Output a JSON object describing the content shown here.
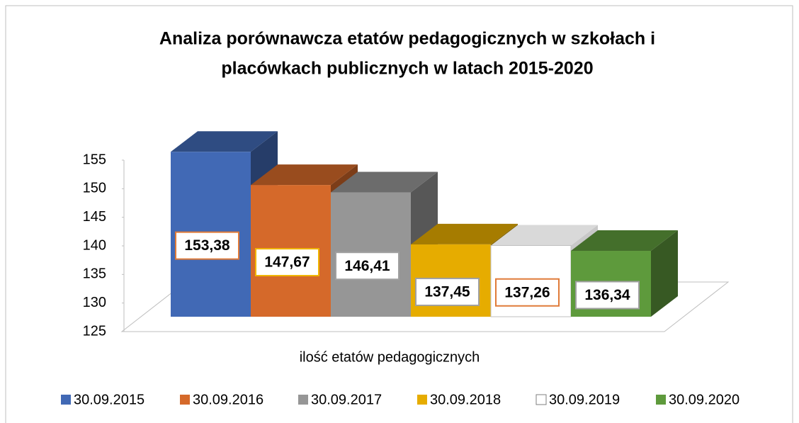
{
  "chart_data": {
    "type": "bar3d",
    "title": [
      "Analiza porównawcza etatów pedagogicznych w szkołach i",
      "placówkach publicznych w latach 2015-2020"
    ],
    "categories": [
      "ilość etatów pedagogicznych"
    ],
    "series": [
      {
        "name": "30.09.2015",
        "color": "#4169b5",
        "label_border": "#e07b39",
        "values": [
          153.38
        ],
        "value_labels": [
          "153,38"
        ]
      },
      {
        "name": "30.09.2016",
        "color": "#d5692a",
        "label_border": "#f0b400",
        "values": [
          147.67
        ],
        "value_labels": [
          "147,67"
        ]
      },
      {
        "name": "30.09.2017",
        "color": "#969696",
        "label_border": "#a0a0a0",
        "values": [
          146.41
        ],
        "value_labels": [
          "146,41"
        ]
      },
      {
        "name": "30.09.2018",
        "color": "#e6ac00",
        "label_border": "#a0a0a0",
        "values": [
          137.45
        ],
        "value_labels": [
          "137,45"
        ]
      },
      {
        "name": "30.09.2019",
        "color": "#ffffff",
        "label_border": "#e07b39",
        "values": [
          137.26
        ],
        "value_labels": [
          "137,26"
        ]
      },
      {
        "name": "30.09.2020",
        "color": "#5e9a3c",
        "label_border": "#a0a0a0",
        "values": [
          136.34
        ],
        "value_labels": [
          "136,34"
        ]
      }
    ],
    "ylim": [
      125,
      155
    ],
    "yticks": [
      125,
      130,
      135,
      140,
      145,
      150,
      155
    ]
  }
}
